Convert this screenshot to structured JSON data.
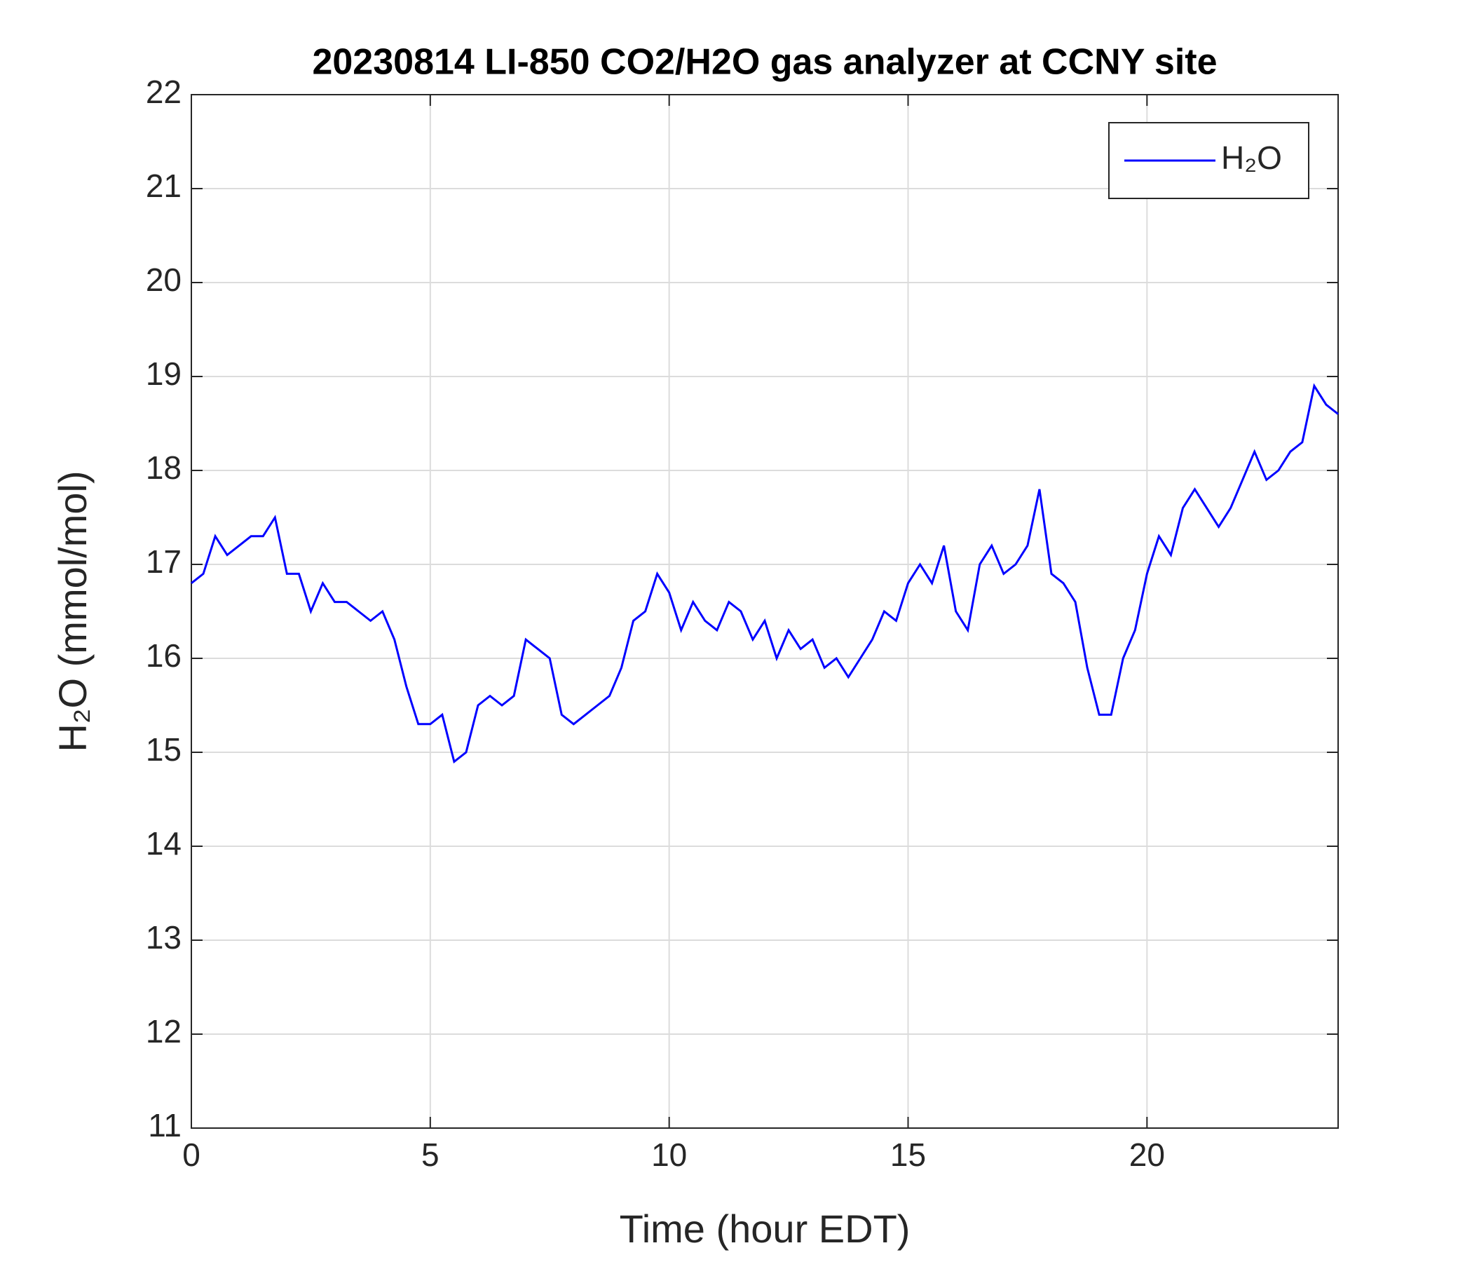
{
  "chart_data": {
    "type": "line",
    "title": "20230814 LI-850 CO2/H2O gas analyzer at CCNY site",
    "xlabel": "Time (hour EDT)",
    "ylabel": "H₂O (mmol/mol)",
    "x": [
      0,
      0.25,
      0.5,
      0.75,
      1,
      1.25,
      1.5,
      1.75,
      2,
      2.25,
      2.5,
      2.75,
      3,
      3.25,
      3.5,
      3.75,
      4,
      4.25,
      4.5,
      4.75,
      5,
      5.25,
      5.5,
      5.75,
      6,
      6.25,
      6.5,
      6.75,
      7,
      7.25,
      7.5,
      7.75,
      8,
      8.25,
      8.5,
      8.75,
      9,
      9.25,
      9.5,
      9.75,
      10,
      10.25,
      10.5,
      10.75,
      11,
      11.25,
      11.5,
      11.75,
      12,
      12.25,
      12.5,
      12.75,
      13,
      13.25,
      13.5,
      13.75,
      14,
      14.25,
      14.5,
      14.75,
      15,
      15.25,
      15.5,
      15.75,
      16,
      16.25,
      16.5,
      16.75,
      17,
      17.25,
      17.5,
      17.75,
      18,
      18.25,
      18.5,
      18.75,
      19,
      19.25,
      19.5,
      19.75,
      20,
      20.25,
      20.5,
      20.75,
      21,
      21.25,
      21.5,
      21.75,
      22,
      22.25,
      22.5,
      22.75,
      23,
      23.25,
      23.5,
      23.75,
      24
    ],
    "series": [
      {
        "name": "H₂O",
        "color": "#0000ff",
        "values": [
          16.8,
          16.9,
          17.3,
          17.1,
          17.2,
          17.3,
          17.3,
          17.5,
          16.9,
          16.9,
          16.5,
          16.8,
          16.6,
          16.6,
          16.5,
          16.4,
          16.5,
          16.2,
          15.7,
          15.3,
          15.3,
          15.4,
          14.9,
          15.0,
          15.5,
          15.6,
          15.5,
          15.6,
          16.2,
          16.1,
          16.0,
          15.4,
          15.3,
          15.4,
          15.5,
          15.6,
          15.9,
          16.4,
          16.5,
          16.9,
          16.7,
          16.3,
          16.6,
          16.4,
          16.3,
          16.6,
          16.5,
          16.2,
          16.4,
          16.0,
          16.3,
          16.1,
          16.2,
          15.9,
          16.0,
          15.8,
          16.0,
          16.2,
          16.5,
          16.4,
          16.8,
          17.0,
          16.8,
          17.2,
          16.5,
          16.3,
          17.0,
          17.2,
          16.9,
          17.0,
          17.2,
          17.8,
          16.9,
          16.8,
          16.6,
          15.9,
          15.4,
          15.4,
          16.0,
          16.3,
          16.9,
          17.3,
          17.1,
          17.6,
          17.8,
          17.6,
          17.4,
          17.6,
          17.9,
          18.2,
          17.9,
          18.0,
          18.2,
          18.3,
          18.9,
          18.7,
          18.6
        ]
      }
    ],
    "xlim": [
      0,
      24
    ],
    "xticks": [
      0,
      5,
      10,
      15,
      20
    ],
    "ylim": [
      11,
      22
    ],
    "yticks": [
      11,
      12,
      13,
      14,
      15,
      16,
      17,
      18,
      19,
      20,
      21,
      22
    ],
    "grid": true,
    "legend": "upper right"
  }
}
